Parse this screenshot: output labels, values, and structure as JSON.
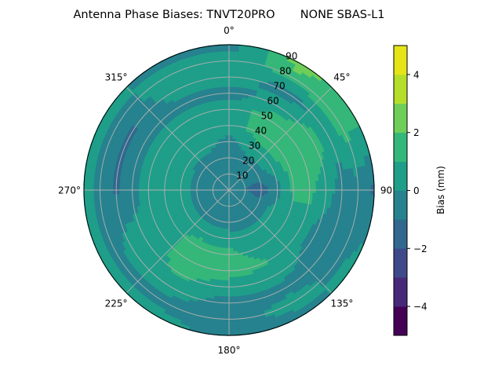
{
  "chart_data": {
    "type": "heatmap",
    "projection": "polar",
    "title": "Antenna Phase Biases: TNVT20PRO       NONE SBAS-L1",
    "colorbar_label": "Bias (mm)",
    "colormap": "viridis",
    "levels": [
      -5,
      -4,
      -3,
      -2,
      -1,
      0,
      1,
      2,
      3,
      4,
      5
    ],
    "level_colors": [
      "#440154",
      "#482878",
      "#3e4989",
      "#31688e",
      "#26828e",
      "#1f9e89",
      "#35b779",
      "#6ece58",
      "#b5de2b",
      "#e5e419"
    ],
    "colorbar_ticks": [
      -4,
      -2,
      0,
      2,
      4
    ],
    "colorbar_tick_labels": [
      "−4",
      "−2",
      "0",
      "2",
      "4"
    ],
    "angular_ticks": [
      0,
      45,
      90,
      135,
      180,
      225,
      270,
      315
    ],
    "angular_tick_labels": [
      "0°",
      "45°",
      "90°",
      "135°",
      "180°",
      "225°",
      "270°",
      "315°"
    ],
    "radial_ticks": [
      10,
      20,
      30,
      40,
      50,
      60,
      70,
      80,
      90
    ],
    "radial_tick_labels": [
      "10",
      "20",
      "30",
      "40",
      "50",
      "60",
      "70",
      "80",
      "90"
    ],
    "theta_direction": "clockwise",
    "theta_zero": "north",
    "rlim": [
      0,
      90
    ],
    "grid": true,
    "azimuth": [
      0,
      30,
      60,
      90,
      120,
      150,
      180,
      210,
      240,
      270,
      300,
      330
    ],
    "zenith": [
      0,
      10,
      20,
      30,
      40,
      50,
      60,
      70,
      80,
      90
    ],
    "values": [
      [
        -0.5,
        -0.5,
        -0.5,
        -0.3,
        0.5,
        0.5,
        -0.5,
        0.5,
        0.5,
        -0.5
      ],
      [
        -0.5,
        -0.5,
        -0.3,
        0.5,
        1.5,
        1.5,
        0.5,
        -0.5,
        1.5,
        2.5
      ],
      [
        -0.5,
        -0.8,
        -0.5,
        0.5,
        1.5,
        1.5,
        1.5,
        0.5,
        1.5,
        1.2
      ],
      [
        -0.5,
        -1.0,
        -1.5,
        -0.5,
        1.2,
        1.3,
        0.5,
        -0.5,
        -0.5,
        -1.2
      ],
      [
        -0.5,
        -0.5,
        -0.5,
        0.5,
        0.5,
        0.5,
        -0.5,
        -0.5,
        -0.5,
        0.5
      ],
      [
        -0.5,
        -0.5,
        -0.5,
        0.3,
        0.5,
        1.0,
        0.5,
        -0.5,
        0.5,
        -0.5
      ],
      [
        -0.5,
        -0.5,
        -0.5,
        0.5,
        1.3,
        1.5,
        0.5,
        -0.5,
        -0.5,
        -0.5
      ],
      [
        -0.5,
        -0.5,
        -0.5,
        0.5,
        1.5,
        1.5,
        1.2,
        0.5,
        -0.5,
        0.5
      ],
      [
        -0.5,
        -0.5,
        -0.5,
        0.5,
        0.5,
        0.5,
        0.5,
        0.5,
        -0.5,
        0.5
      ],
      [
        -0.5,
        -0.5,
        -0.5,
        0.5,
        0.5,
        0.5,
        -0.5,
        -1.2,
        -0.5,
        0.5
      ],
      [
        -0.5,
        -0.5,
        -0.5,
        0.5,
        0.5,
        0.5,
        -0.5,
        -1.2,
        -0.5,
        0.5
      ],
      [
        -0.5,
        -0.5,
        -0.5,
        0.3,
        0.5,
        0.5,
        -0.5,
        0.5,
        0.5,
        -0.5
      ]
    ]
  }
}
